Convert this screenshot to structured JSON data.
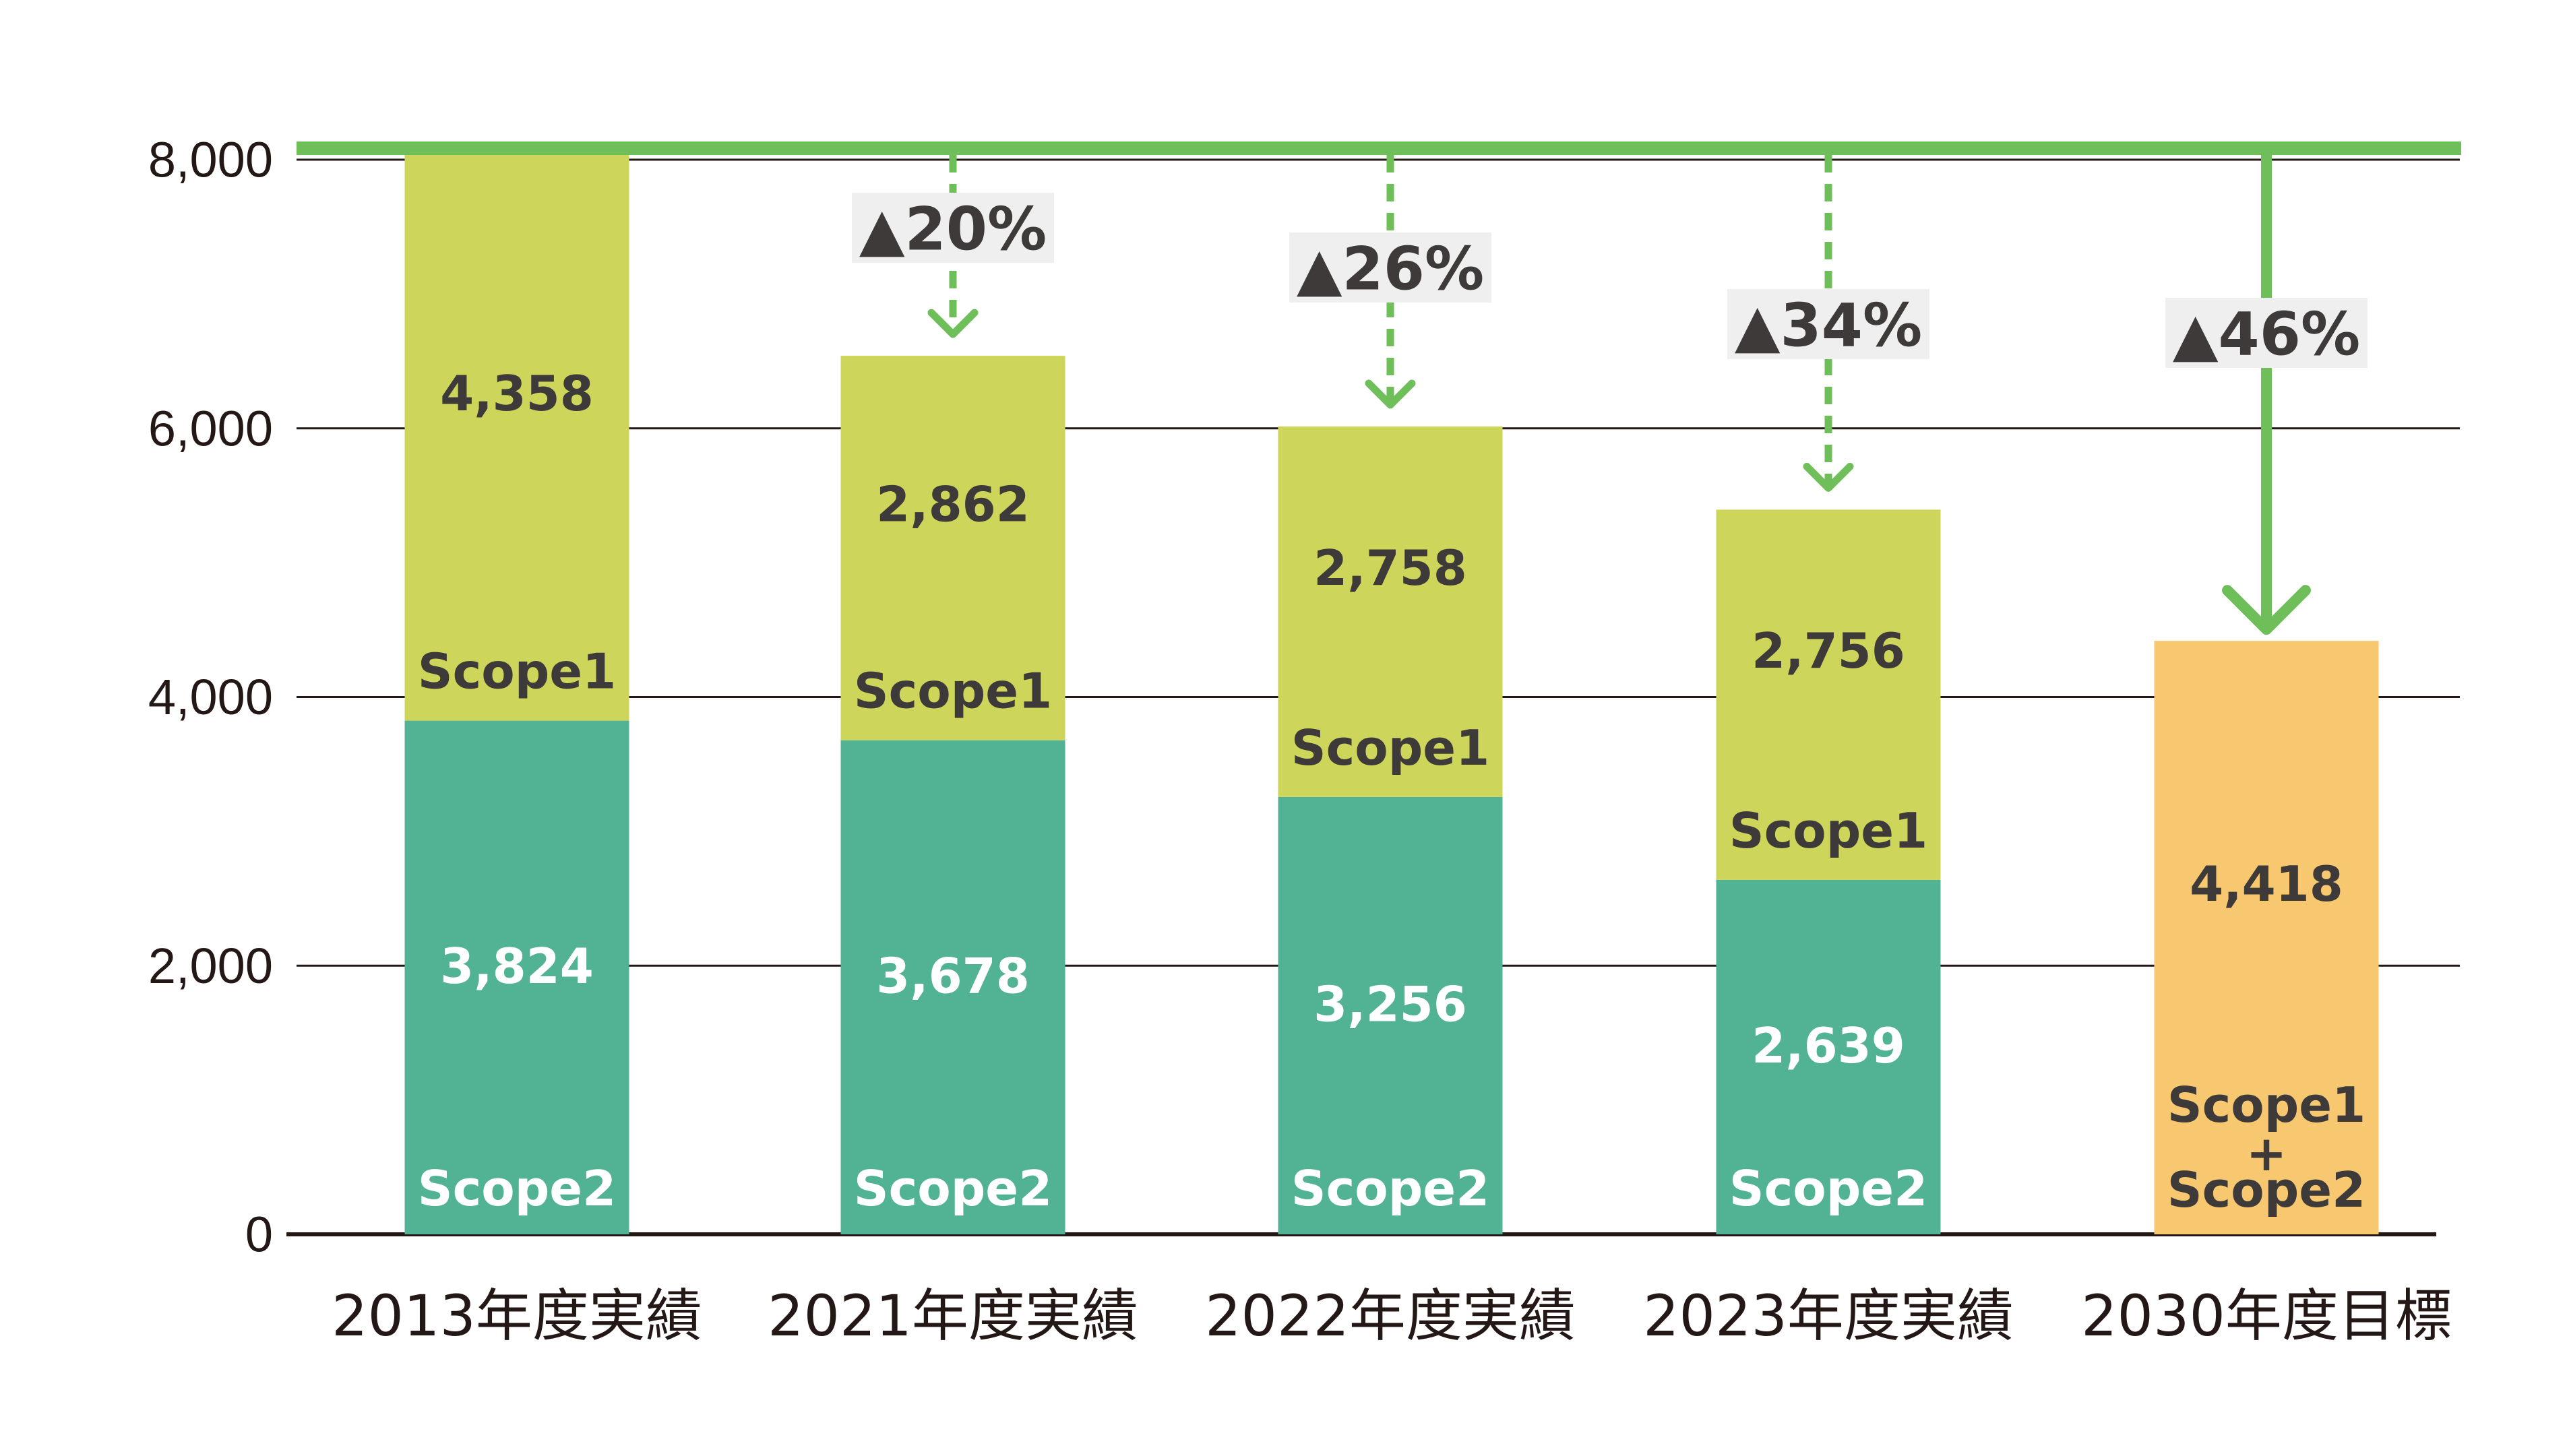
{
  "chart_data": {
    "type": "bar",
    "stacked": true,
    "categories": [
      "2013年度実績",
      "2021年度実績",
      "2022年度実績",
      "2023年度実績",
      "2030年度目標"
    ],
    "series": [
      {
        "name": "Scope2",
        "values": [
          3824,
          3678,
          3256,
          2639,
          null
        ],
        "color": "#52b394",
        "label_color": "#ffffff"
      },
      {
        "name": "Scope1",
        "values": [
          4358,
          2862,
          2758,
          2756,
          null
        ],
        "color": "#cdd65a",
        "label_color": "#3e3a39"
      },
      {
        "name": "Scope1 + Scope2",
        "values": [
          null,
          null,
          null,
          null,
          4418
        ],
        "color": "#f8c870",
        "label_color": "#3e3a39"
      }
    ],
    "segment_names": {
      "scope1": "Scope1",
      "scope2": "Scope2",
      "target": [
        "Scope1",
        "+",
        "Scope2"
      ]
    },
    "reductions": [
      "",
      "▲20%",
      "▲26%",
      "▲34%",
      "▲46%"
    ],
    "reference_value": 8182,
    "yticks": [
      0,
      2000,
      4000,
      6000,
      8000
    ],
    "ytick_labels": [
      "0",
      "2,000",
      "4,000",
      "6,000",
      "8,000"
    ],
    "ylim": [
      0,
      8182
    ],
    "grid": true,
    "title": "",
    "xlabel": "",
    "ylabel": "",
    "colors": {
      "baseline_line": "#6ebe5a",
      "arrow": "#6ebe5a",
      "badge_bg": "#efefef",
      "grid": "#231815"
    }
  }
}
